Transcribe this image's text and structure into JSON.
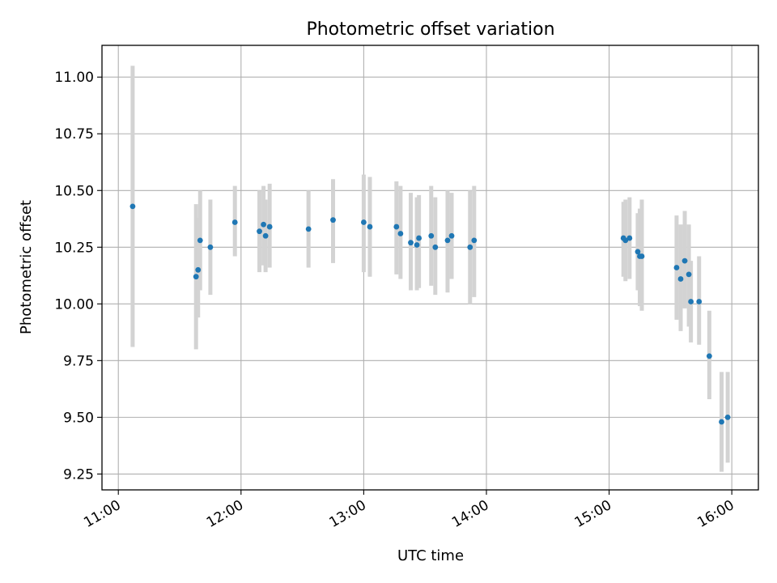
{
  "chart_data": {
    "type": "scatter",
    "title": "Photometric offset variation",
    "xlabel": "UTC time",
    "ylabel": "Photometric offset",
    "x_ticks": [
      "11:00",
      "12:00",
      "13:00",
      "14:00",
      "15:00",
      "16:00"
    ],
    "y_ticks": [
      "9.25",
      "9.50",
      "9.75",
      "10.00",
      "10.25",
      "10.50",
      "10.75",
      "11.00"
    ],
    "xlim": [
      "10:52",
      "16:13"
    ],
    "ylim": [
      9.18,
      11.14
    ],
    "grid": true,
    "colors": {
      "points": "#1f77b4",
      "error_bars": "#d3d3d3",
      "grid": "#b0b0b0"
    },
    "points": [
      {
        "t": "11:07",
        "y": 10.43,
        "lo": 9.81,
        "hi": 11.05
      },
      {
        "t": "11:38",
        "y": 10.12,
        "lo": 9.8,
        "hi": 10.44
      },
      {
        "t": "11:39",
        "y": 10.15,
        "lo": 9.94,
        "hi": 10.38
      },
      {
        "t": "11:40",
        "y": 10.28,
        "lo": 10.06,
        "hi": 10.5
      },
      {
        "t": "11:45",
        "y": 10.25,
        "lo": 10.04,
        "hi": 10.46
      },
      {
        "t": "11:57",
        "y": 10.36,
        "lo": 10.21,
        "hi": 10.52
      },
      {
        "t": "12:09",
        "y": 10.32,
        "lo": 10.14,
        "hi": 10.5
      },
      {
        "t": "12:11",
        "y": 10.35,
        "lo": 10.17,
        "hi": 10.52
      },
      {
        "t": "12:12",
        "y": 10.3,
        "lo": 10.14,
        "hi": 10.46
      },
      {
        "t": "12:14",
        "y": 10.34,
        "lo": 10.16,
        "hi": 10.53
      },
      {
        "t": "12:33",
        "y": 10.33,
        "lo": 10.16,
        "hi": 10.5
      },
      {
        "t": "12:45",
        "y": 10.37,
        "lo": 10.18,
        "hi": 10.55
      },
      {
        "t": "13:00",
        "y": 10.36,
        "lo": 10.14,
        "hi": 10.57
      },
      {
        "t": "13:03",
        "y": 10.34,
        "lo": 10.12,
        "hi": 10.56
      },
      {
        "t": "13:16",
        "y": 10.34,
        "lo": 10.13,
        "hi": 10.54
      },
      {
        "t": "13:18",
        "y": 10.31,
        "lo": 10.11,
        "hi": 10.52
      },
      {
        "t": "13:23",
        "y": 10.27,
        "lo": 10.06,
        "hi": 10.49
      },
      {
        "t": "13:26",
        "y": 10.26,
        "lo": 10.06,
        "hi": 10.47
      },
      {
        "t": "13:27",
        "y": 10.29,
        "lo": 10.07,
        "hi": 10.48
      },
      {
        "t": "13:33",
        "y": 10.3,
        "lo": 10.08,
        "hi": 10.52
      },
      {
        "t": "13:35",
        "y": 10.25,
        "lo": 10.04,
        "hi": 10.47
      },
      {
        "t": "13:41",
        "y": 10.28,
        "lo": 10.05,
        "hi": 10.5
      },
      {
        "t": "13:43",
        "y": 10.3,
        "lo": 10.11,
        "hi": 10.49
      },
      {
        "t": "13:52",
        "y": 10.25,
        "lo": 10.0,
        "hi": 10.5
      },
      {
        "t": "13:54",
        "y": 10.28,
        "lo": 10.03,
        "hi": 10.52
      },
      {
        "t": "15:07",
        "y": 10.29,
        "lo": 10.12,
        "hi": 10.45
      },
      {
        "t": "15:08",
        "y": 10.28,
        "lo": 10.1,
        "hi": 10.46
      },
      {
        "t": "15:10",
        "y": 10.29,
        "lo": 10.11,
        "hi": 10.47
      },
      {
        "t": "15:14",
        "y": 10.23,
        "lo": 10.06,
        "hi": 10.4
      },
      {
        "t": "15:15",
        "y": 10.21,
        "lo": 9.99,
        "hi": 10.42
      },
      {
        "t": "15:16",
        "y": 10.21,
        "lo": 9.97,
        "hi": 10.46
      },
      {
        "t": "15:33",
        "y": 10.16,
        "lo": 9.93,
        "hi": 10.39
      },
      {
        "t": "15:35",
        "y": 10.11,
        "lo": 9.88,
        "hi": 10.35
      },
      {
        "t": "15:37",
        "y": 10.19,
        "lo": 9.98,
        "hi": 10.41
      },
      {
        "t": "15:39",
        "y": 10.13,
        "lo": 9.9,
        "hi": 10.35
      },
      {
        "t": "15:40",
        "y": 10.01,
        "lo": 9.83,
        "hi": 10.19
      },
      {
        "t": "15:44",
        "y": 10.01,
        "lo": 9.82,
        "hi": 10.21
      },
      {
        "t": "15:49",
        "y": 9.77,
        "lo": 9.58,
        "hi": 9.97
      },
      {
        "t": "15:55",
        "y": 9.48,
        "lo": 9.26,
        "hi": 9.7
      },
      {
        "t": "15:58",
        "y": 9.5,
        "lo": 9.3,
        "hi": 9.7
      }
    ]
  }
}
